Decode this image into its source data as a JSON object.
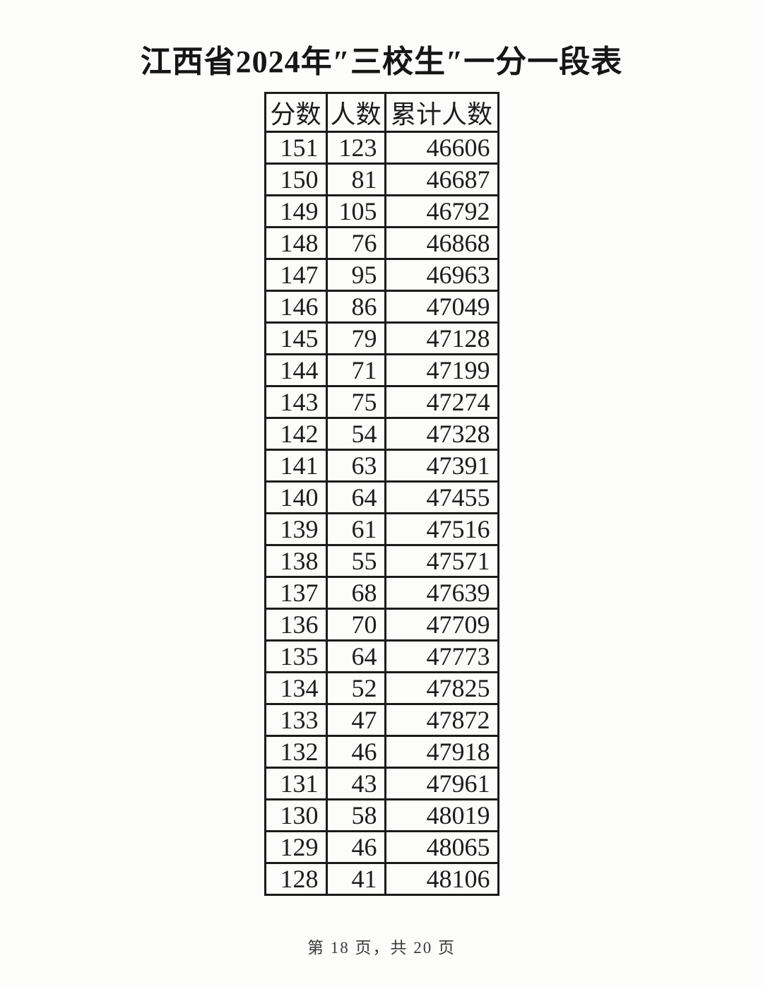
{
  "page": {
    "title": "江西省2024年″三校生″一分一段表",
    "footer": "第 18 页，共 20 页"
  },
  "table": {
    "headers": [
      "分数",
      "人数",
      "累计人数"
    ],
    "column_keys": [
      "score",
      "count",
      "cumulative_count"
    ],
    "rows": [
      [
        151,
        123,
        46606
      ],
      [
        150,
        81,
        46687
      ],
      [
        149,
        105,
        46792
      ],
      [
        148,
        76,
        46868
      ],
      [
        147,
        95,
        46963
      ],
      [
        146,
        86,
        47049
      ],
      [
        145,
        79,
        47128
      ],
      [
        144,
        71,
        47199
      ],
      [
        143,
        75,
        47274
      ],
      [
        142,
        54,
        47328
      ],
      [
        141,
        63,
        47391
      ],
      [
        140,
        64,
        47455
      ],
      [
        139,
        61,
        47516
      ],
      [
        138,
        55,
        47571
      ],
      [
        137,
        68,
        47639
      ],
      [
        136,
        70,
        47709
      ],
      [
        135,
        64,
        47773
      ],
      [
        134,
        52,
        47825
      ],
      [
        133,
        47,
        47872
      ],
      [
        132,
        46,
        47918
      ],
      [
        131,
        43,
        47961
      ],
      [
        130,
        58,
        48019
      ],
      [
        129,
        46,
        48065
      ],
      [
        128,
        41,
        48106
      ]
    ]
  },
  "colors": {
    "text": "#1c1c1c",
    "border": "#1b1b1b",
    "background": "#fdfdfc"
  }
}
